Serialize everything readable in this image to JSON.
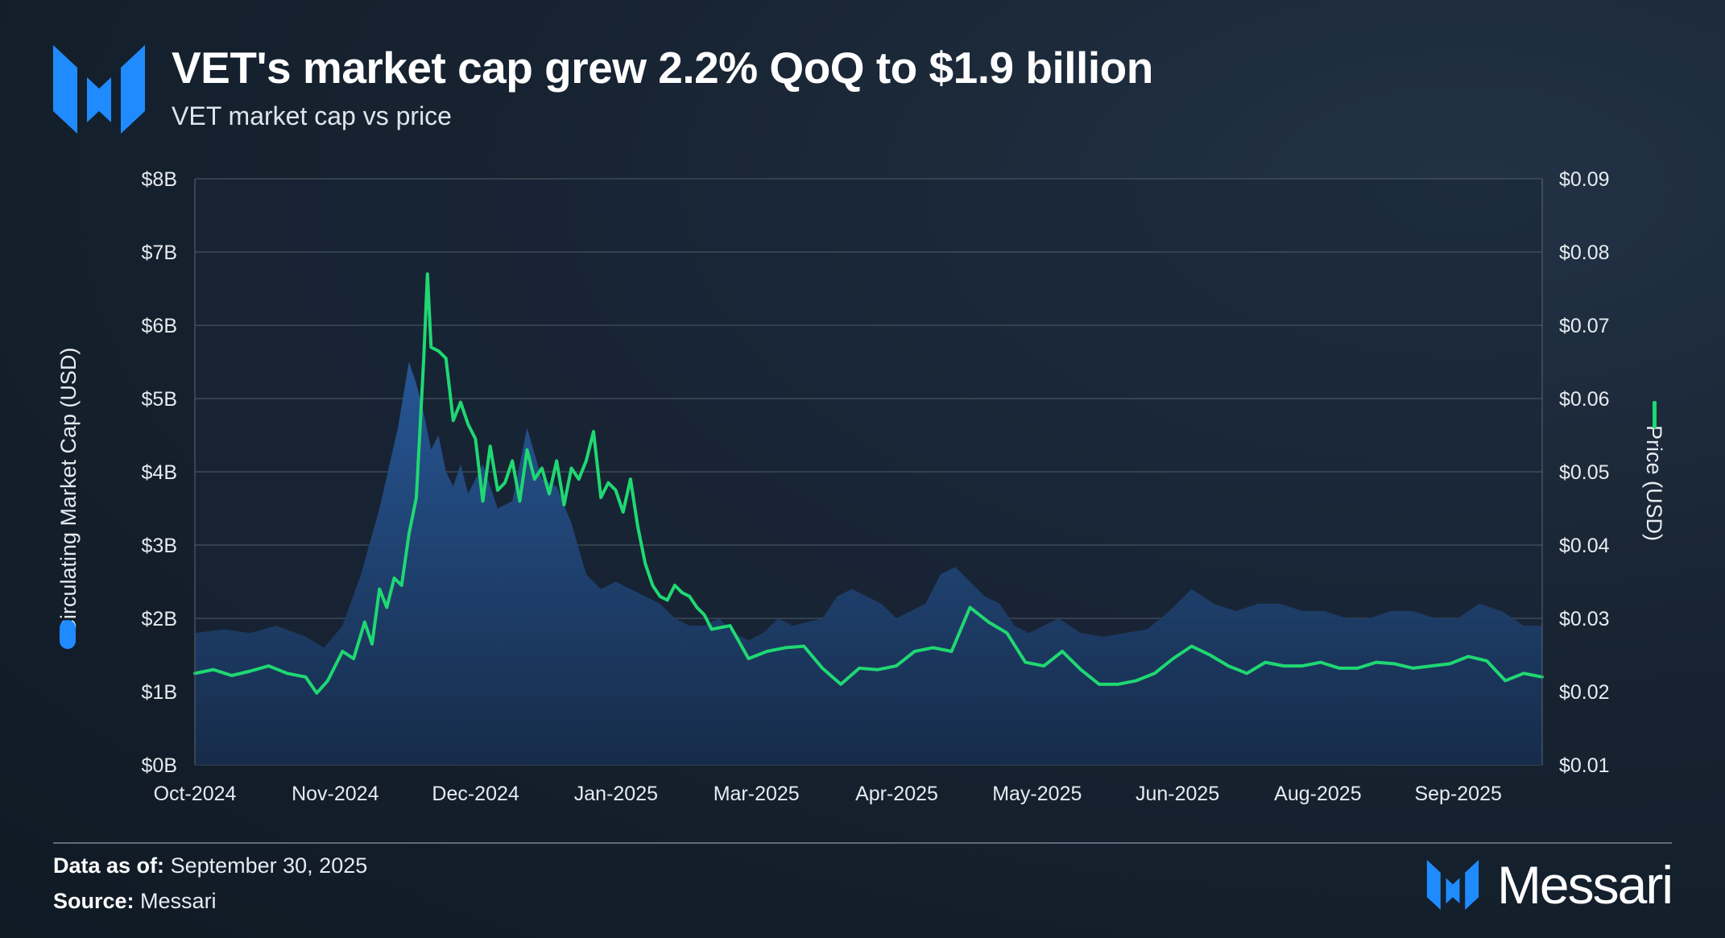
{
  "header": {
    "title": "VET's market cap grew 2.2% QoQ to $1.9 billion",
    "subtitle": "VET market cap vs price"
  },
  "footer": {
    "data_as_of_label": "Data as of:",
    "data_as_of_value": "September 30, 2025",
    "source_label": "Source:",
    "source_value": "Messari",
    "brand": "Messari"
  },
  "colors": {
    "accent_blue": "#1f8bff",
    "price_green": "#1fd872",
    "area_fill": "#1f4e8a",
    "background": "#131d29"
  },
  "chart_data": {
    "type": "area",
    "title": "VET market cap vs price",
    "x_tick_labels": [
      "Oct-2024",
      "Nov-2024",
      "Dec-2024",
      "Jan-2025",
      "Mar-2025",
      "Apr-2025",
      "May-2025",
      "Jun-2025",
      "Aug-2025",
      "Sep-2025"
    ],
    "x_range_days": [
      0,
      365
    ],
    "left_axis": {
      "label": "Circulating Market Cap (USD)",
      "range": [
        0,
        8
      ],
      "tick_labels": [
        "$0B",
        "$1B",
        "$2B",
        "$3B",
        "$4B",
        "$5B",
        "$6B",
        "$7B",
        "$8B"
      ]
    },
    "right_axis": {
      "label": "Price (USD)",
      "range": [
        0.01,
        0.09
      ],
      "tick_labels": [
        "$0.01",
        "$0.02",
        "$0.03",
        "$0.04",
        "$0.05",
        "$0.06",
        "$0.07",
        "$0.08",
        "$0.09"
      ]
    },
    "grid": true,
    "series": [
      {
        "name": "Circulating Market Cap (USD)",
        "axis": "left",
        "type": "area",
        "x": [
          0,
          8,
          15,
          22,
          30,
          35,
          40,
          45,
          50,
          55,
          58,
          60,
          62,
          64,
          66,
          68,
          70,
          72,
          74,
          78,
          82,
          86,
          90,
          94,
          98,
          102,
          106,
          110,
          114,
          118,
          122,
          126,
          130,
          134,
          138,
          142,
          146,
          150,
          154,
          158,
          162,
          166,
          170,
          174,
          178,
          182,
          186,
          190,
          194,
          198,
          202,
          206,
          210,
          214,
          218,
          222,
          226,
          230,
          234,
          240,
          246,
          252,
          258,
          264,
          270,
          276,
          282,
          288,
          294,
          300,
          306,
          312,
          318,
          324,
          330,
          336,
          342,
          348,
          354,
          360,
          365
        ],
        "values": [
          1.8,
          1.85,
          1.8,
          1.9,
          1.75,
          1.6,
          1.9,
          2.6,
          3.5,
          4.6,
          5.5,
          5.2,
          4.8,
          4.3,
          4.5,
          4.0,
          3.8,
          4.1,
          3.7,
          4.1,
          3.5,
          3.6,
          4.6,
          3.9,
          3.8,
          3.3,
          2.6,
          2.4,
          2.5,
          2.4,
          2.3,
          2.2,
          2.0,
          1.9,
          1.9,
          2.0,
          1.8,
          1.7,
          1.8,
          2.0,
          1.9,
          1.95,
          2.0,
          2.3,
          2.4,
          2.3,
          2.2,
          2.0,
          2.1,
          2.2,
          2.6,
          2.7,
          2.5,
          2.3,
          2.2,
          1.9,
          1.8,
          1.9,
          2.0,
          1.8,
          1.75,
          1.8,
          1.85,
          2.1,
          2.4,
          2.2,
          2.1,
          2.2,
          2.2,
          2.1,
          2.1,
          2.0,
          2.0,
          2.1,
          2.1,
          2.0,
          2.0,
          2.2,
          2.1,
          1.9,
          1.9
        ]
      },
      {
        "name": "Price (USD)",
        "axis": "right",
        "type": "line",
        "x": [
          0,
          5,
          10,
          15,
          20,
          25,
          30,
          33,
          36,
          40,
          43,
          46,
          48,
          50,
          52,
          54,
          56,
          58,
          60,
          62,
          63,
          64,
          66,
          68,
          70,
          72,
          74,
          76,
          78,
          80,
          82,
          84,
          86,
          88,
          90,
          92,
          94,
          96,
          98,
          100,
          102,
          104,
          106,
          108,
          110,
          112,
          114,
          116,
          118,
          120,
          122,
          124,
          126,
          128,
          130,
          132,
          134,
          136,
          138,
          140,
          145,
          150,
          155,
          160,
          165,
          170,
          175,
          180,
          185,
          190,
          195,
          200,
          205,
          210,
          215,
          220,
          225,
          230,
          235,
          240,
          245,
          250,
          255,
          260,
          265,
          270,
          275,
          280,
          285,
          290,
          295,
          300,
          305,
          310,
          315,
          320,
          325,
          330,
          335,
          340,
          345,
          350,
          355,
          360,
          365
        ],
        "values": [
          0.0225,
          0.023,
          0.0222,
          0.0228,
          0.0235,
          0.0225,
          0.022,
          0.0198,
          0.0215,
          0.0255,
          0.0245,
          0.0295,
          0.0265,
          0.034,
          0.0315,
          0.0355,
          0.0345,
          0.0415,
          0.0465,
          0.0655,
          0.077,
          0.067,
          0.0665,
          0.0655,
          0.057,
          0.0595,
          0.0565,
          0.0545,
          0.046,
          0.0535,
          0.0475,
          0.0485,
          0.0515,
          0.046,
          0.053,
          0.049,
          0.0505,
          0.047,
          0.0515,
          0.0455,
          0.0505,
          0.049,
          0.0515,
          0.0555,
          0.0465,
          0.0485,
          0.0475,
          0.0445,
          0.049,
          0.0425,
          0.0375,
          0.0345,
          0.033,
          0.0325,
          0.0345,
          0.0335,
          0.033,
          0.0315,
          0.0305,
          0.0285,
          0.029,
          0.0245,
          0.0255,
          0.026,
          0.0262,
          0.0232,
          0.021,
          0.0232,
          0.023,
          0.0235,
          0.0255,
          0.026,
          0.0255,
          0.0315,
          0.0295,
          0.028,
          0.024,
          0.0235,
          0.0255,
          0.023,
          0.021,
          0.021,
          0.0215,
          0.0225,
          0.0245,
          0.0262,
          0.025,
          0.0235,
          0.0225,
          0.024,
          0.0235,
          0.0235,
          0.024,
          0.0232,
          0.0232,
          0.024,
          0.0238,
          0.0232,
          0.0235,
          0.0238,
          0.0248,
          0.0242,
          0.0215,
          0.0225,
          0.022
        ]
      }
    ]
  }
}
